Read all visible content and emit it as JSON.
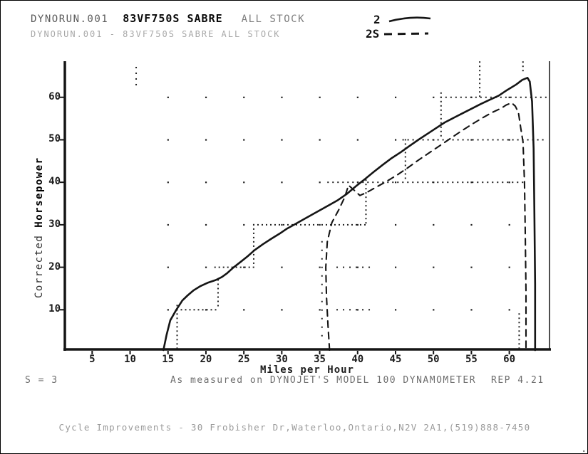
{
  "header": {
    "run1_file": "DYNORUN.001",
    "run1_title": "83VF750S SABRE",
    "run1_suffix": "ALL STOCK",
    "run2_line": "DYNORUN.001 - 83VF750S SABRE ALL STOCK"
  },
  "legend": {
    "run1_label": "2",
    "run2_label": "2S"
  },
  "footer": {
    "smoothing": "S = 3",
    "measured_note": "As measured on DYNOJET'S MODEL 100 DYNAMOMETER",
    "version": "REP 4.21",
    "address": "Cycle Improvements - 30 Frobisher Dr,Waterloo,Ontario,N2V 2A1,(519)888-7450",
    "period_mark": "."
  },
  "colors": {
    "ink": "#151515",
    "dot": "#222222",
    "faded": "#5a5a5a",
    "faint": "#9b9b9b"
  },
  "chart_data": {
    "type": "line",
    "title": "83VF750S SABRE ALL STOCK",
    "xlabel": "Miles per Hour",
    "ylabel": "Corrected Horsepower",
    "ylabel_regular": "Corrected ",
    "ylabel_bold": "Horsepower",
    "xlim": [
      1.4,
      65.3
    ],
    "ylim": [
      0,
      68.6
    ],
    "x_ticks": [
      5,
      10,
      15,
      20,
      25,
      30,
      35,
      40,
      45,
      50,
      55,
      60
    ],
    "y_ticks": [
      10,
      20,
      30,
      40,
      50,
      60
    ],
    "grid": "dotted-staircase",
    "legend_position": "top-right",
    "series": [
      {
        "name": "2",
        "style": "solid",
        "points": [
          [
            14.4,
            0.5
          ],
          [
            14.8,
            4
          ],
          [
            15.3,
            7.5
          ],
          [
            16.1,
            10
          ],
          [
            16.9,
            12.2
          ],
          [
            17.6,
            13.4
          ],
          [
            18.4,
            14.6
          ],
          [
            19.3,
            15.6
          ],
          [
            20.3,
            16.4
          ],
          [
            21.3,
            17.0
          ],
          [
            22.1,
            17.7
          ],
          [
            22.8,
            18.6
          ],
          [
            23.6,
            19.9
          ],
          [
            24.6,
            21.3
          ],
          [
            25.5,
            22.6
          ],
          [
            26.4,
            24.0
          ],
          [
            27.5,
            25.4
          ],
          [
            28.6,
            26.7
          ],
          [
            29.7,
            27.9
          ],
          [
            30.7,
            29.1
          ],
          [
            31.9,
            30.3
          ],
          [
            33.0,
            31.4
          ],
          [
            34.2,
            32.6
          ],
          [
            35.4,
            33.8
          ],
          [
            36.4,
            34.8
          ],
          [
            37.4,
            35.8
          ],
          [
            38.6,
            37.3
          ],
          [
            39.8,
            39.1
          ],
          [
            41.0,
            40.8
          ],
          [
            42.1,
            42.4
          ],
          [
            43.3,
            44.1
          ],
          [
            44.5,
            45.7
          ],
          [
            45.7,
            47.1
          ],
          [
            46.8,
            48.5
          ],
          [
            48.0,
            50.0
          ],
          [
            49.2,
            51.4
          ],
          [
            50.4,
            52.8
          ],
          [
            51.5,
            54.1
          ],
          [
            52.7,
            55.2
          ],
          [
            53.9,
            56.3
          ],
          [
            55.1,
            57.4
          ],
          [
            56.2,
            58.4
          ],
          [
            57.4,
            59.4
          ],
          [
            58.6,
            60.4
          ],
          [
            59.7,
            61.7
          ],
          [
            60.9,
            63.0
          ],
          [
            61.7,
            64.1
          ],
          [
            62.4,
            64.6
          ],
          [
            62.7,
            63.7
          ],
          [
            63.0,
            59.0
          ],
          [
            63.2,
            48.0
          ],
          [
            63.3,
            34.0
          ],
          [
            63.4,
            16.0
          ],
          [
            63.4,
            0.5
          ]
        ]
      },
      {
        "name": "2S",
        "style": "dashed",
        "points": [
          [
            36.3,
            0.5
          ],
          [
            36.1,
            6
          ],
          [
            35.9,
            13
          ],
          [
            35.8,
            20
          ],
          [
            36.0,
            26
          ],
          [
            36.6,
            30.5
          ],
          [
            37.5,
            33.5
          ],
          [
            38.3,
            36.5
          ],
          [
            38.8,
            39.3
          ],
          [
            39.5,
            38.2
          ],
          [
            40.3,
            36.9
          ],
          [
            41.3,
            37.7
          ],
          [
            42.4,
            38.8
          ],
          [
            43.8,
            40.2
          ],
          [
            45.2,
            41.7
          ],
          [
            46.6,
            43.4
          ],
          [
            48.0,
            45.2
          ],
          [
            49.4,
            46.9
          ],
          [
            50.9,
            48.7
          ],
          [
            52.3,
            50.4
          ],
          [
            53.7,
            52.1
          ],
          [
            55.1,
            53.7
          ],
          [
            56.5,
            55.2
          ],
          [
            57.7,
            56.4
          ],
          [
            58.9,
            57.4
          ],
          [
            59.6,
            58.2
          ],
          [
            60.3,
            58.7
          ],
          [
            60.8,
            57.9
          ],
          [
            61.2,
            56.4
          ],
          [
            61.5,
            52.8
          ],
          [
            61.8,
            49.5
          ],
          [
            62.0,
            40.0
          ],
          [
            62.1,
            29.0
          ],
          [
            62.2,
            14.0
          ],
          [
            62.2,
            0.5
          ]
        ]
      }
    ],
    "dot_segments": {
      "horizontal": [
        {
          "hp": 10,
          "from": 16.2,
          "to": 21.6,
          "step": 6
        },
        {
          "hp": 20,
          "from": 21.2,
          "to": 26.3,
          "step": 6
        },
        {
          "hp": 30,
          "from": 26.3,
          "to": 41.1,
          "step": 6
        },
        {
          "hp": 40,
          "from": 36.1,
          "to": 62.2,
          "step": 7
        },
        {
          "hp": 50,
          "from": 46.0,
          "to": 65.0,
          "step": 7
        },
        {
          "hp": 60,
          "from": 51.0,
          "to": 65.0,
          "step": 7
        },
        {
          "hp": 10,
          "from": 37.3,
          "to": 41.6,
          "step": 9
        },
        {
          "hp": 20,
          "from": 37.3,
          "to": 41.6,
          "step": 9
        }
      ],
      "vertical": [
        {
          "mph": 16.2,
          "from": 0,
          "to": 11,
          "step": 6
        },
        {
          "mph": 21.6,
          "from": 10,
          "to": 17,
          "step": 6
        },
        {
          "mph": 26.3,
          "from": 20,
          "to": 30,
          "step": 6
        },
        {
          "mph": 35.3,
          "from": 3,
          "to": 26,
          "step": 12
        },
        {
          "mph": 41.1,
          "from": 30,
          "to": 40.5,
          "step": 6
        },
        {
          "mph": 46.3,
          "from": 40.5,
          "to": 50,
          "step": 6
        },
        {
          "mph": 51.0,
          "from": 50,
          "to": 61,
          "step": 6
        },
        {
          "mph": 56.1,
          "from": 60,
          "to": 68.3,
          "step": 6
        },
        {
          "mph": 61.3,
          "from": 0,
          "to": 9,
          "step": 6
        },
        {
          "mph": 61.8,
          "from": 65.5,
          "to": 68.3,
          "step": 6
        },
        {
          "mph": 10.8,
          "from": 62.5,
          "to": 67,
          "step": 8
        }
      ]
    },
    "grid_dots": {
      "mph": [
        15,
        20,
        25,
        30,
        35,
        40,
        45,
        50,
        55,
        60
      ],
      "hp": [
        10,
        20,
        30,
        40,
        50,
        60
      ]
    }
  }
}
